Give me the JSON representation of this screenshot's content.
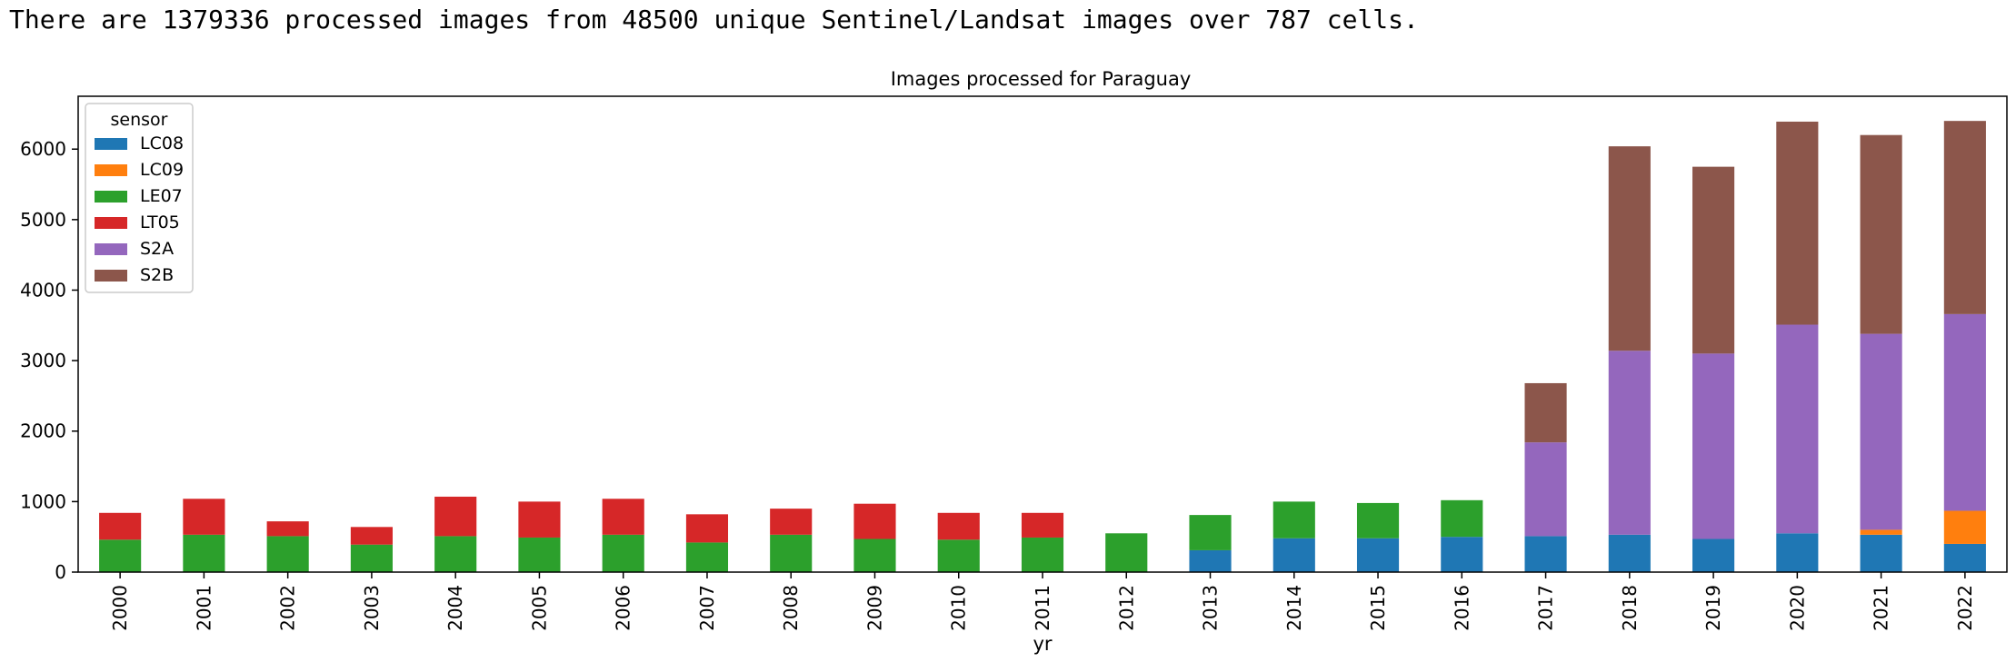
{
  "summary_text": "There are 1379336 processed images from 48500 unique Sentinel/Landsat images over 787 cells.",
  "chart_data": {
    "type": "bar",
    "stacked": true,
    "title": "Images processed for Paraguay",
    "xlabel": "yr",
    "ylabel": "",
    "ylim": [
      0,
      6750
    ],
    "yticks": [
      0,
      1000,
      2000,
      3000,
      4000,
      5000,
      6000
    ],
    "grid": false,
    "legend": {
      "title": "sensor",
      "placement": "top-left"
    },
    "categories": [
      "2000",
      "2001",
      "2002",
      "2003",
      "2004",
      "2005",
      "2006",
      "2007",
      "2008",
      "2009",
      "2010",
      "2011",
      "2012",
      "2013",
      "2014",
      "2015",
      "2016",
      "2017",
      "2018",
      "2019",
      "2020",
      "2021",
      "2022"
    ],
    "series": [
      {
        "name": "LC08",
        "color": "#1f77b4",
        "values": [
          0,
          0,
          0,
          0,
          0,
          0,
          0,
          0,
          0,
          0,
          0,
          0,
          0,
          310,
          480,
          480,
          500,
          510,
          530,
          470,
          550,
          530,
          400
        ]
      },
      {
        "name": "LC09",
        "color": "#ff7f0e",
        "values": [
          0,
          0,
          0,
          0,
          0,
          0,
          0,
          0,
          0,
          0,
          0,
          0,
          0,
          0,
          0,
          0,
          0,
          0,
          0,
          0,
          0,
          70,
          470
        ]
      },
      {
        "name": "LE07",
        "color": "#2ca02c",
        "values": [
          460,
          530,
          510,
          390,
          510,
          490,
          530,
          420,
          530,
          470,
          460,
          490,
          550,
          500,
          520,
          500,
          520,
          0,
          0,
          0,
          0,
          0,
          0
        ]
      },
      {
        "name": "LT05",
        "color": "#d62728",
        "values": [
          380,
          510,
          210,
          250,
          560,
          510,
          510,
          400,
          370,
          500,
          380,
          350,
          0,
          0,
          0,
          0,
          0,
          0,
          0,
          0,
          0,
          0,
          0
        ]
      },
      {
        "name": "S2A",
        "color": "#9467bd",
        "values": [
          0,
          0,
          0,
          0,
          0,
          0,
          0,
          0,
          0,
          0,
          0,
          0,
          0,
          0,
          0,
          0,
          0,
          1330,
          2610,
          2630,
          2960,
          2780,
          2790
        ]
      },
      {
        "name": "S2B",
        "color": "#8c564b",
        "values": [
          0,
          0,
          0,
          0,
          0,
          0,
          0,
          0,
          0,
          0,
          0,
          0,
          0,
          0,
          0,
          0,
          0,
          840,
          2900,
          2650,
          2880,
          2820,
          2740
        ]
      }
    ]
  }
}
